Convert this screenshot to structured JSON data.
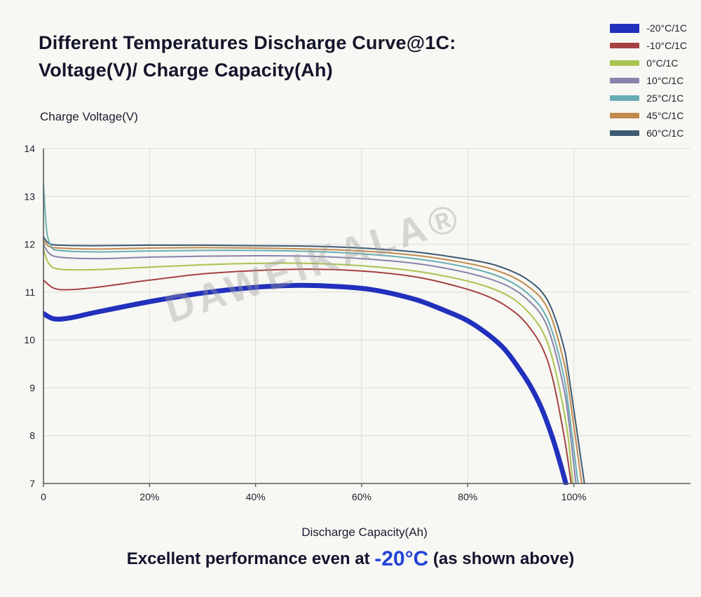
{
  "header": {
    "title_line1": "Different Temperatures Discharge Curve@1C:",
    "title_line2": "Voltage(V)/ Charge Capacity(Ah)"
  },
  "watermark": "DAWEIKALA®",
  "footer": {
    "prefix": "Excellent performance even at ",
    "highlight": "-20°C",
    "suffix": " (as shown above)",
    "highlight_color": "#2343d7"
  },
  "chart_data": {
    "type": "line",
    "title": "Different Temperatures Discharge Curve@1C: Voltage(V)/ Charge Capacity(Ah)",
    "xlabel": "Discharge Capacity(Ah)",
    "ylabel": "Charge Voltage(V)",
    "xlim": [
      0,
      122
    ],
    "ylim": [
      7,
      14
    ],
    "grid": true,
    "legend_position": "top-right",
    "x_ticks": [
      {
        "value": 0,
        "label": "0"
      },
      {
        "value": 20,
        "label": "20%"
      },
      {
        "value": 40,
        "label": "40%"
      },
      {
        "value": 60,
        "label": "60%"
      },
      {
        "value": 80,
        "label": "80%"
      },
      {
        "value": 100,
        "label": "100%"
      }
    ],
    "y_ticks": [
      7,
      8,
      9,
      10,
      11,
      12,
      13,
      14
    ],
    "series": [
      {
        "name": "-20°C/1C",
        "color": "#2130bd",
        "width": 7,
        "points": [
          [
            0,
            10.55
          ],
          [
            2,
            10.44
          ],
          [
            5,
            10.46
          ],
          [
            10,
            10.58
          ],
          [
            20,
            10.8
          ],
          [
            30,
            10.98
          ],
          [
            40,
            11.1
          ],
          [
            48,
            11.14
          ],
          [
            55,
            11.12
          ],
          [
            62,
            11.05
          ],
          [
            70,
            10.85
          ],
          [
            76,
            10.6
          ],
          [
            80,
            10.4
          ],
          [
            84,
            10.1
          ],
          [
            87,
            9.8
          ],
          [
            90,
            9.35
          ],
          [
            92,
            9.0
          ],
          [
            94,
            8.55
          ],
          [
            96,
            7.95
          ],
          [
            97.5,
            7.4
          ],
          [
            98.5,
            7.0
          ]
        ]
      },
      {
        "name": "-10°C/1C",
        "color": "#a64243",
        "width": 2,
        "points": [
          [
            0,
            11.25
          ],
          [
            2,
            11.08
          ],
          [
            5,
            11.05
          ],
          [
            10,
            11.1
          ],
          [
            20,
            11.25
          ],
          [
            30,
            11.38
          ],
          [
            40,
            11.45
          ],
          [
            50,
            11.48
          ],
          [
            60,
            11.44
          ],
          [
            70,
            11.32
          ],
          [
            78,
            11.12
          ],
          [
            84,
            10.9
          ],
          [
            88,
            10.65
          ],
          [
            91,
            10.35
          ],
          [
            94,
            9.85
          ],
          [
            96,
            9.2
          ],
          [
            98,
            8.1
          ],
          [
            99,
            7.4
          ],
          [
            99.5,
            7.0
          ]
        ]
      },
      {
        "name": "0°C/1C",
        "color": "#a9c44f",
        "width": 2,
        "points": [
          [
            0,
            11.9
          ],
          [
            1,
            11.6
          ],
          [
            3,
            11.48
          ],
          [
            10,
            11.47
          ],
          [
            20,
            11.52
          ],
          [
            30,
            11.57
          ],
          [
            40,
            11.6
          ],
          [
            50,
            11.6
          ],
          [
            60,
            11.55
          ],
          [
            70,
            11.44
          ],
          [
            78,
            11.28
          ],
          [
            84,
            11.1
          ],
          [
            88,
            10.9
          ],
          [
            91,
            10.63
          ],
          [
            94,
            10.2
          ],
          [
            96,
            9.6
          ],
          [
            98,
            8.6
          ],
          [
            99,
            7.9
          ],
          [
            99.8,
            7.0
          ]
        ]
      },
      {
        "name": "10°C/1C",
        "color": "#8b82ab",
        "width": 2,
        "points": [
          [
            0,
            12.0
          ],
          [
            1,
            11.82
          ],
          [
            3,
            11.73
          ],
          [
            10,
            11.7
          ],
          [
            20,
            11.73
          ],
          [
            30,
            11.75
          ],
          [
            40,
            11.76
          ],
          [
            50,
            11.75
          ],
          [
            60,
            11.7
          ],
          [
            70,
            11.6
          ],
          [
            78,
            11.45
          ],
          [
            84,
            11.28
          ],
          [
            88,
            11.1
          ],
          [
            91,
            10.87
          ],
          [
            94,
            10.5
          ],
          [
            96,
            9.95
          ],
          [
            98,
            9.05
          ],
          [
            99,
            8.35
          ],
          [
            100.4,
            7.0
          ]
        ]
      },
      {
        "name": "25°C/1C",
        "color": "#68aeb4",
        "width": 2,
        "points": [
          [
            0,
            13.25
          ],
          [
            0.6,
            12.3
          ],
          [
            1.5,
            11.95
          ],
          [
            3,
            11.87
          ],
          [
            10,
            11.84
          ],
          [
            20,
            11.86
          ],
          [
            30,
            11.87
          ],
          [
            40,
            11.87
          ],
          [
            50,
            11.85
          ],
          [
            60,
            11.8
          ],
          [
            70,
            11.7
          ],
          [
            78,
            11.56
          ],
          [
            84,
            11.4
          ],
          [
            88,
            11.22
          ],
          [
            91,
            11.0
          ],
          [
            94,
            10.65
          ],
          [
            96,
            10.15
          ],
          [
            98,
            9.3
          ],
          [
            99,
            8.6
          ],
          [
            100.8,
            7.0
          ]
        ]
      },
      {
        "name": "45°C/1C",
        "color": "#c08a4d",
        "width": 2,
        "points": [
          [
            0,
            12.08
          ],
          [
            1,
            11.96
          ],
          [
            3,
            11.92
          ],
          [
            10,
            11.9
          ],
          [
            20,
            11.92
          ],
          [
            30,
            11.93
          ],
          [
            40,
            11.92
          ],
          [
            50,
            11.9
          ],
          [
            60,
            11.86
          ],
          [
            70,
            11.77
          ],
          [
            78,
            11.64
          ],
          [
            84,
            11.5
          ],
          [
            88,
            11.34
          ],
          [
            91,
            11.15
          ],
          [
            94,
            10.85
          ],
          [
            96,
            10.4
          ],
          [
            98,
            9.6
          ],
          [
            99,
            9.0
          ],
          [
            101.5,
            7.0
          ]
        ]
      },
      {
        "name": "60°C/1C",
        "color": "#3d5a72",
        "width": 2,
        "points": [
          [
            0,
            12.15
          ],
          [
            1,
            12.02
          ],
          [
            3,
            11.98
          ],
          [
            10,
            11.97
          ],
          [
            20,
            11.98
          ],
          [
            30,
            11.98
          ],
          [
            40,
            11.97
          ],
          [
            50,
            11.96
          ],
          [
            60,
            11.92
          ],
          [
            70,
            11.84
          ],
          [
            78,
            11.72
          ],
          [
            84,
            11.6
          ],
          [
            88,
            11.45
          ],
          [
            91,
            11.28
          ],
          [
            94,
            11.0
          ],
          [
            96,
            10.6
          ],
          [
            98,
            9.9
          ],
          [
            99,
            9.3
          ],
          [
            102,
            7.0
          ]
        ]
      }
    ]
  }
}
